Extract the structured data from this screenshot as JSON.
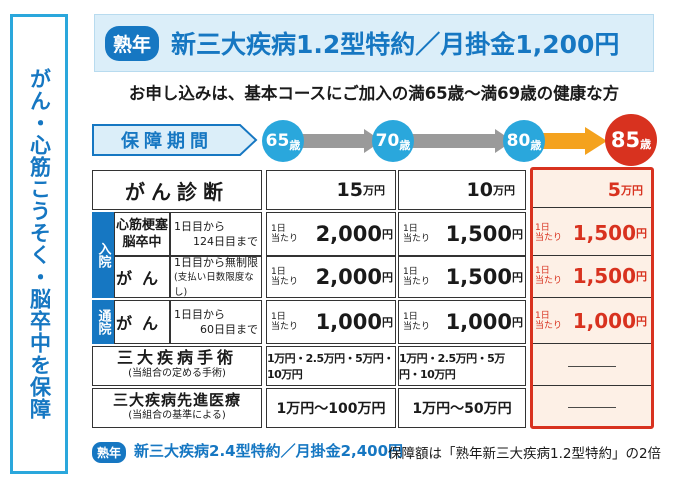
{
  "side_banner": "がん・心筋こうそく・脳卒中を保障",
  "title": {
    "badge": "熟年",
    "text": "新三大疾病1.2型特約／月掛金1,200円"
  },
  "subtitle": "お申し込みは、基本コースにご加入の満65歳～満69歳の健康な方",
  "period": {
    "label": "保障期間",
    "ages": [
      {
        "num": "65",
        "unit": "歳"
      },
      {
        "num": "70",
        "unit": "歳"
      },
      {
        "num": "80",
        "unit": "歳"
      },
      {
        "num": "85",
        "unit": "歳"
      }
    ]
  },
  "colors": {
    "blue": "#1677c2",
    "light_blue": "#2aa7dc",
    "red": "#d8321f",
    "orange": "#f4a21e"
  },
  "rows": {
    "cancer_diag": {
      "label": "がん診断",
      "c1": "15",
      "c2": "10",
      "c3": "5",
      "unit": "万円"
    },
    "hosp_tag": "入院",
    "hosp1": {
      "name_a": "心筋梗塞",
      "name_b": "脳卒中",
      "note_a": "1日目から",
      "note_b": "124日目まで",
      "per_a": "1日",
      "per_b": "当たり",
      "c1": "2,000",
      "c2": "1,500",
      "c3": "1,500",
      "unit": "円"
    },
    "hosp2": {
      "name": "がん",
      "note_a": "1日目から無制限",
      "note_b": "(支払い日数限度なし)",
      "per_a": "1日",
      "per_b": "当たり",
      "c1": "2,000",
      "c2": "1,500",
      "c3": "1,500",
      "unit": "円"
    },
    "outp_tag": "通院",
    "outp": {
      "name": "がん",
      "note_a": "1日目から",
      "note_b": "60日目まで",
      "per_a": "1日",
      "per_b": "当たり",
      "c1": "1,000",
      "c2": "1,000",
      "c3": "1,000",
      "unit": "円"
    },
    "surgery": {
      "label": "三大疾病手術",
      "sub": "(当組合の定める手術)",
      "c1": "1万円・2.5万円・5万円・10万円",
      "c2": "1万円・2.5万円・5万円・10万円",
      "c3": "――――"
    },
    "advanced": {
      "label": "三大疾病先進医療",
      "sub": "(当組合の基準による)",
      "c1": "1万円～100万円",
      "c2": "1万円～50万円",
      "c3": "――――"
    }
  },
  "footer": {
    "badge": "熟年",
    "plan": "新三大疾病2.4型特約／月掛金2,400円",
    "note": "保障額は「熟年新三大疾病1.2型特約」の2倍"
  }
}
